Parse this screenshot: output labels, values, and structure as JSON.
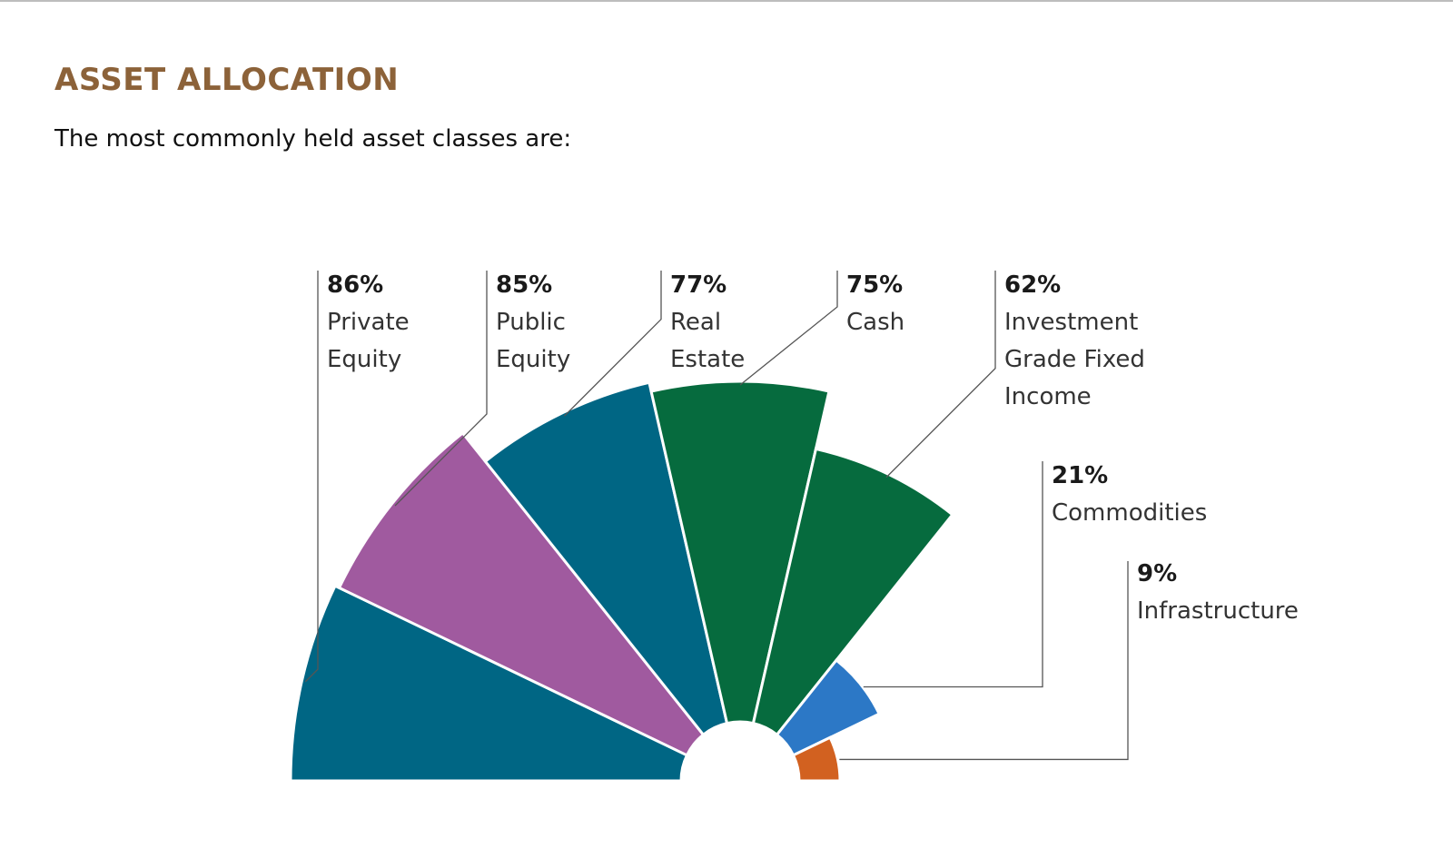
{
  "header": {
    "title": "ASSET ALLOCATION",
    "subtitle": "The most commonly held asset classes are:"
  },
  "chart_data": {
    "type": "pie",
    "subtype": "radial-bar (half fan)",
    "title": "ASSET ALLOCATION",
    "subtitle": "The most commonly held asset classes are:",
    "unit": "%",
    "categories": [
      "Private Equity",
      "Public Equity",
      "Real Estate",
      "Cash",
      "Investment Grade Fixed Income",
      "Commodities",
      "Infrastructure"
    ],
    "values": [
      86,
      85,
      77,
      75,
      62,
      21,
      9
    ],
    "value_labels": [
      "86%",
      "85%",
      "77%",
      "75%",
      "62%",
      "21%",
      "9%"
    ],
    "label_lines": [
      [
        "Private",
        "Equity"
      ],
      [
        "Public",
        "Equity"
      ],
      [
        "Real",
        "Estate"
      ],
      [
        "Cash"
      ],
      [
        "Investment",
        "Grade Fixed",
        "Income"
      ],
      [
        "Commodities"
      ],
      [
        "Infrastructure"
      ]
    ],
    "colors": [
      "#006684",
      "#a05a9f",
      "#006684",
      "#066b3e",
      "#066b3e",
      "#2c78c6",
      "#d26120"
    ],
    "legend": "none",
    "grid": false
  }
}
